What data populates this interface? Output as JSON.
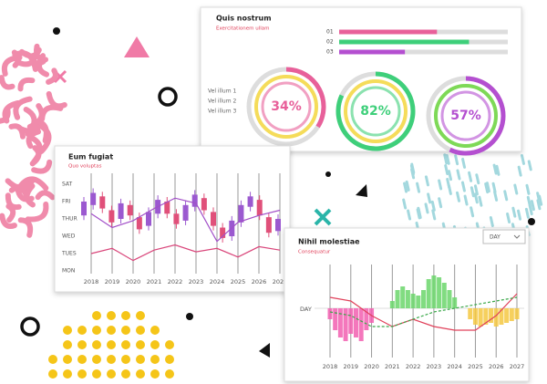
{
  "progress_card": {
    "title": "Quis nostrum",
    "subtitle": "Exercitationem ullam",
    "bars": [
      {
        "label": "01",
        "value": 58,
        "color": "#e8609a"
      },
      {
        "label": "02",
        "value": 77,
        "color": "#3ecf7a"
      },
      {
        "label": "03",
        "value": 39,
        "color": "#b44fd0"
      }
    ],
    "legend": [
      "Vel illum 1",
      "Vel illum 2",
      "Vel illum 3"
    ],
    "donuts": [
      {
        "label": "34%",
        "value": 34,
        "color": "#e8609a",
        "ring": "#f5dc5a"
      },
      {
        "label": "82%",
        "value": 82,
        "color": "#3ecf7a",
        "ring": "#f5dc5a"
      },
      {
        "label": "57%",
        "value": 57,
        "color": "#b44fd0",
        "ring": "#7ed957"
      }
    ]
  },
  "candle_card": {
    "title": "Eum fugiat",
    "subtitle": "Quo voluptas",
    "yticks": [
      "MON",
      "TUES",
      "WED",
      "THUR",
      "FRI",
      "SAT"
    ],
    "xticks": [
      2018,
      2019,
      2020,
      2021,
      2022,
      2023,
      2024,
      2025,
      2026,
      2027
    ],
    "candles": {
      "open": [
        3.2,
        3.8,
        4.3,
        3.5,
        3.0,
        3.8,
        3.1,
        2.6,
        3.3,
        4.0,
        3.3,
        2.9,
        3.7,
        4.2,
        3.4,
        2.5,
        2.0,
        2.8,
        3.7,
        4.1,
        3.1,
        2.3
      ],
      "close": [
        4.0,
        4.5,
        3.6,
        2.8,
        3.9,
        3.2,
        2.4,
        3.4,
        4.1,
        3.3,
        2.7,
        3.8,
        4.4,
        3.5,
        2.6,
        1.9,
        2.9,
        3.8,
        4.3,
        3.2,
        2.2,
        3.0
      ],
      "up_color": "#9b59d0",
      "down_color": "#e0507a"
    },
    "lines": [
      {
        "color": "#a24fc8",
        "values": [
          3.3,
          2.5,
          2.9,
          3.6,
          4.2,
          3.9,
          1.7,
          2.8,
          3.2,
          3.5
        ]
      },
      {
        "color": "#d9457a",
        "values": [
          1.0,
          1.3,
          0.6,
          1.2,
          1.5,
          1.1,
          1.3,
          0.8,
          1.4,
          1.2
        ]
      }
    ]
  },
  "wave_card": {
    "title": "Nihil molestiae",
    "subtitle": "Consequatur",
    "dropdown": "DAY",
    "ylabel": "DAY",
    "xticks": [
      2018,
      2019,
      2020,
      2021,
      2022,
      2023,
      2024,
      2025,
      2026,
      2027
    ],
    "ylim": [
      -1,
      1
    ],
    "areas": [
      {
        "color": "#f25fb0",
        "x": [
          2018,
          2018.25,
          2018.5,
          2018.75,
          2019,
          2019.25,
          2019.5,
          2019.75,
          2020
        ],
        "values": [
          -0.3,
          -0.6,
          -0.8,
          -0.9,
          -0.7,
          -0.8,
          -0.9,
          -0.6,
          -0.4
        ]
      },
      {
        "color": "#6bd66b",
        "x": [
          2021,
          2021.25,
          2021.5,
          2021.75,
          2022,
          2022.25,
          2022.5,
          2022.75,
          2023,
          2023.25,
          2023.5,
          2023.75,
          2024
        ],
        "values": [
          0.2,
          0.5,
          0.6,
          0.5,
          0.4,
          0.35,
          0.5,
          0.8,
          0.9,
          0.85,
          0.7,
          0.5,
          0.3
        ]
      },
      {
        "color": "#f5c842",
        "x": [
          2024.75,
          2025,
          2025.25,
          2025.5,
          2025.75,
          2026,
          2026.25,
          2026.5,
          2026.75,
          2027
        ],
        "values": [
          -0.3,
          -0.45,
          -0.5,
          -0.45,
          -0.4,
          -0.5,
          -0.45,
          -0.4,
          -0.35,
          -0.3
        ]
      }
    ],
    "lines": [
      {
        "color": "#e0405a",
        "dashed": false,
        "values": [
          0.3,
          0.2,
          -0.2,
          -0.5,
          -0.3,
          -0.5,
          -0.6,
          -0.6,
          -0.2,
          0.4
        ]
      },
      {
        "color": "#3aa84a",
        "dashed": true,
        "values": [
          -0.1,
          -0.2,
          -0.5,
          -0.5,
          -0.3,
          -0.1,
          0,
          0.1,
          0.2,
          0.3
        ]
      }
    ]
  }
}
